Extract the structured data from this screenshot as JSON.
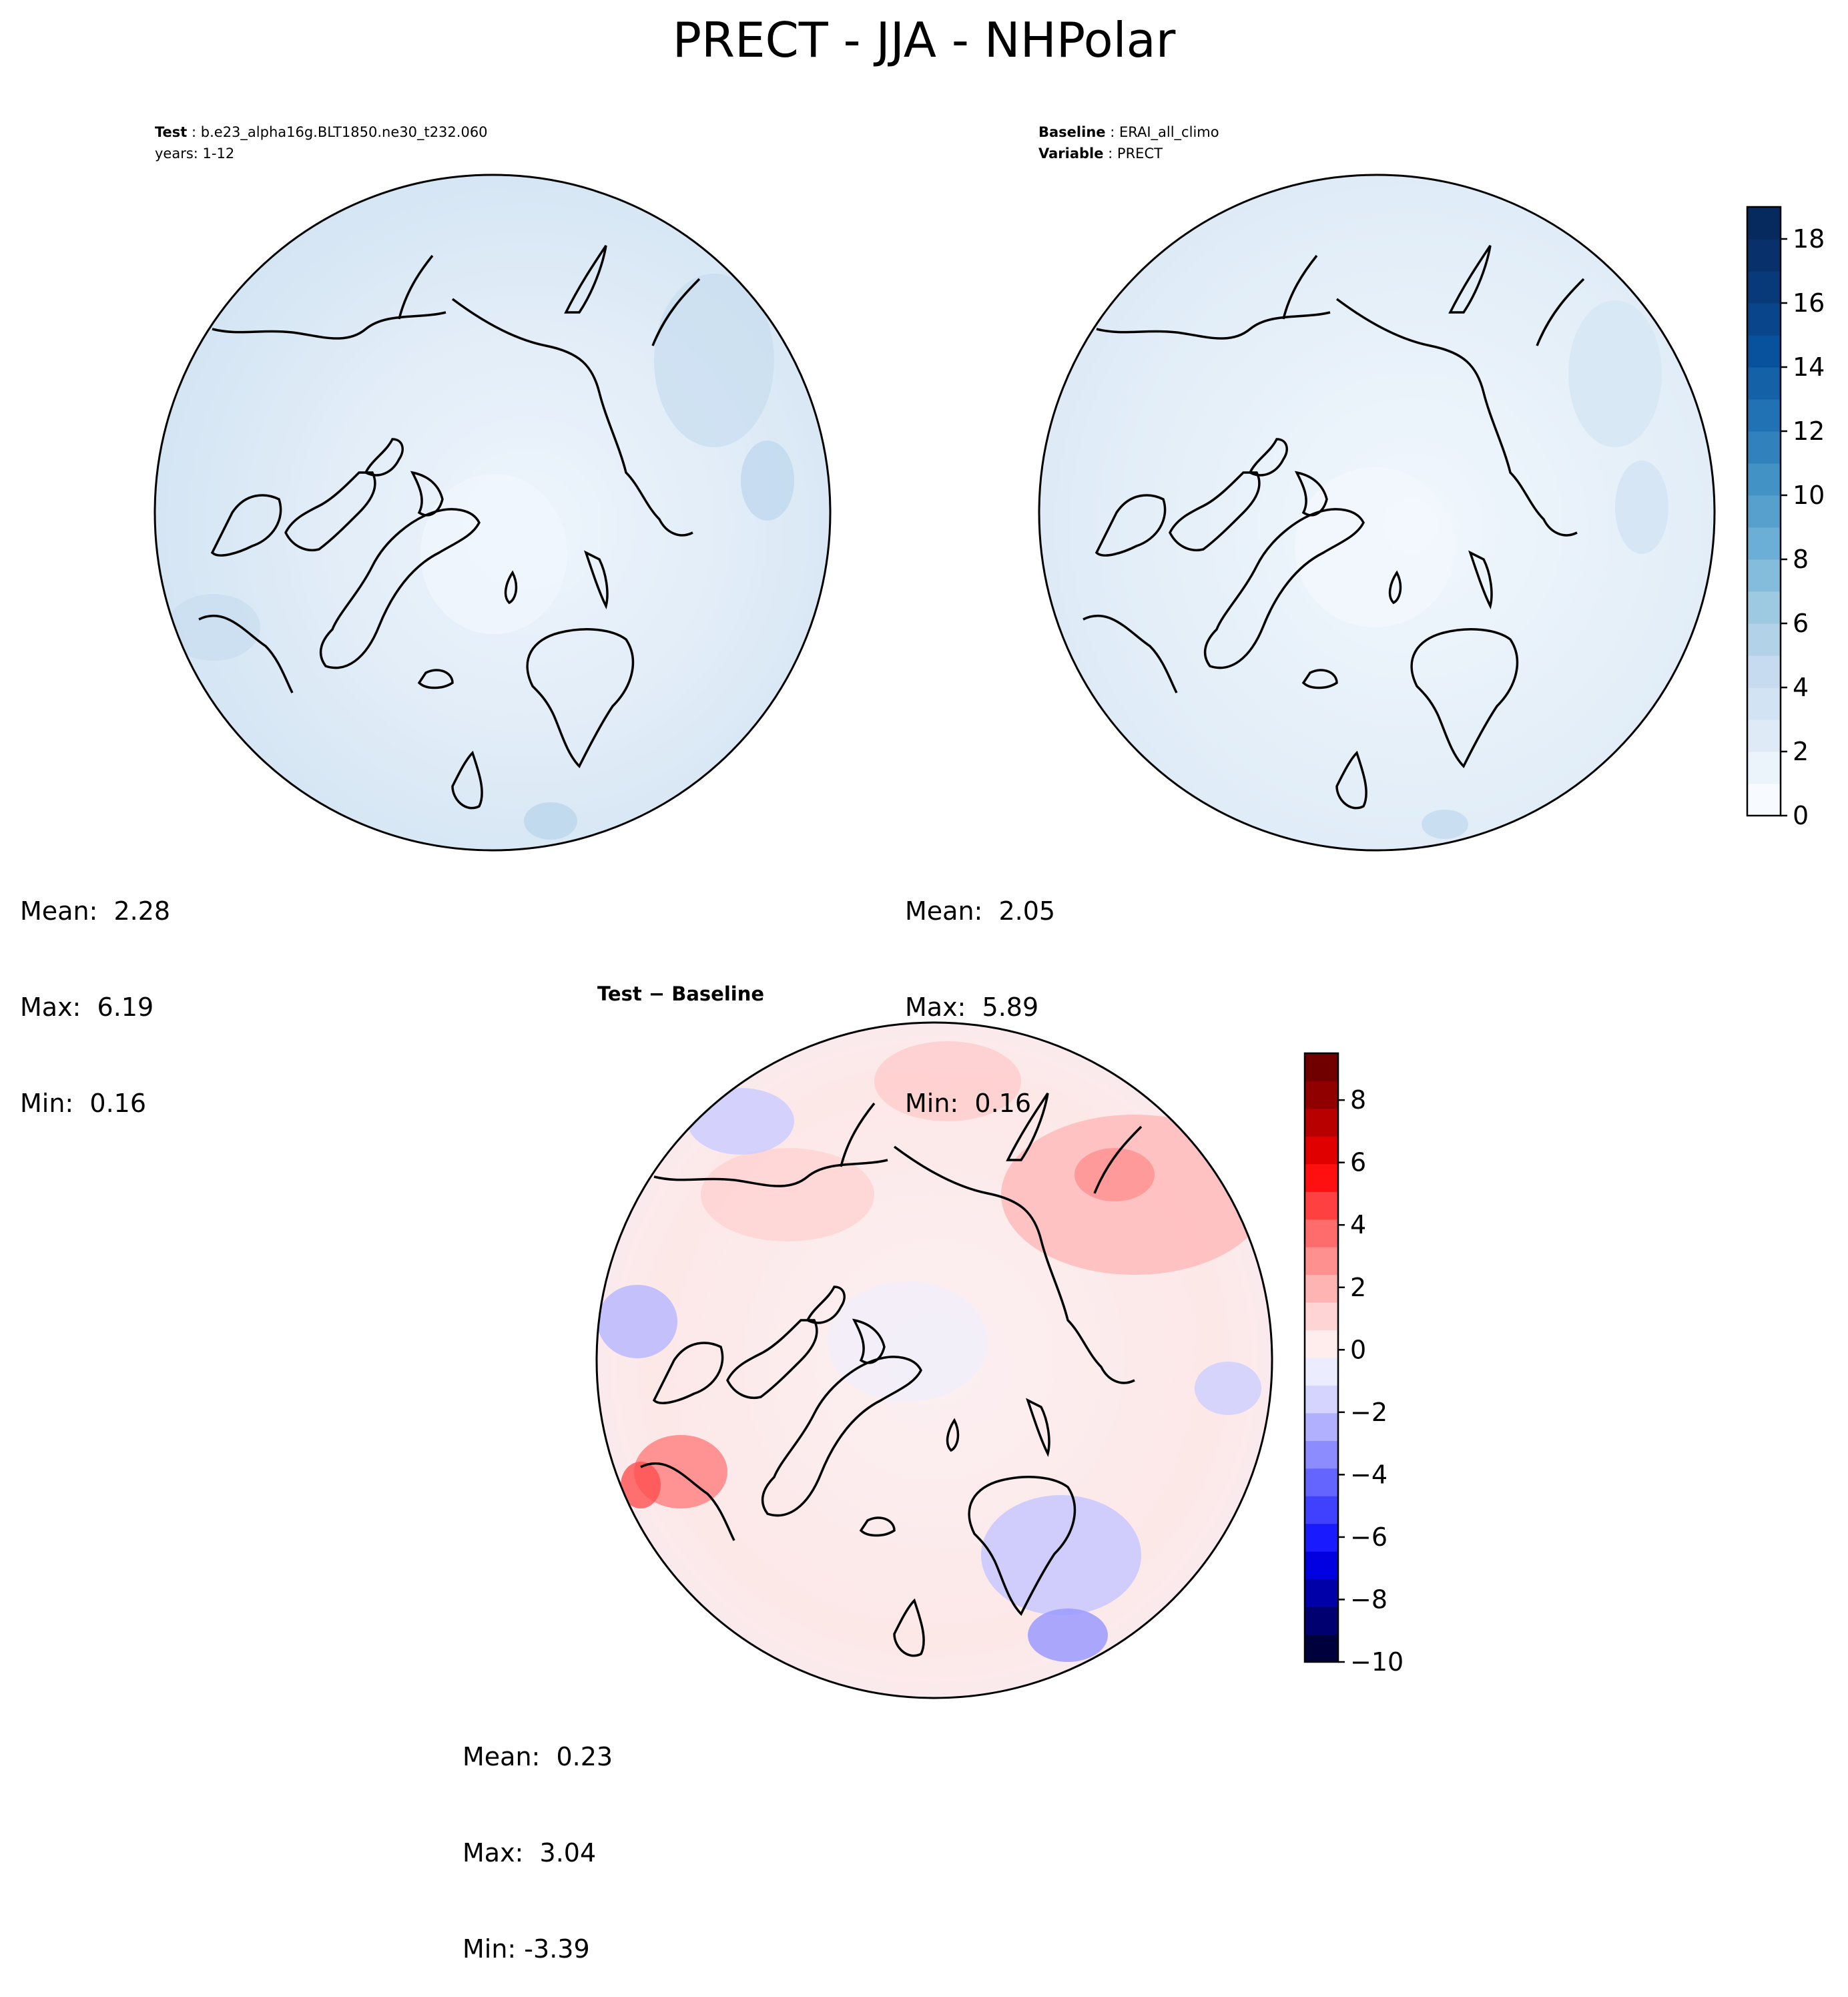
{
  "title": "PRECT - JJA - NHPolar",
  "test_panel": {
    "label_key": "Test",
    "label_value": "b.e23_alpha16g.BLT1850.ne30_t232.060",
    "years": "years: 1-12",
    "stats": {
      "mean": "Mean:  2.28",
      "max": "Max:  6.19",
      "min": "Min:  0.16"
    }
  },
  "baseline_panel": {
    "baseline_key": "Baseline",
    "baseline_value": "ERAI_all_climo",
    "variable_key": "Variable",
    "variable_value": "PRECT",
    "stats": {
      "mean": "Mean:  2.05",
      "max": "Max:  5.89",
      "min": "Min:  0.16"
    }
  },
  "diff_panel": {
    "title": "Test − Baseline",
    "stats": {
      "mean": "Mean:  0.23",
      "max": "Max:  3.04",
      "min": "Min: -3.39"
    }
  },
  "colorbar_abs": {
    "range": [
      0,
      19
    ],
    "ticks": [
      "0",
      "2",
      "4",
      "6",
      "8",
      "10",
      "12",
      "14",
      "16",
      "18"
    ],
    "colors": [
      "#f7fbff",
      "#ebf3fb",
      "#deebf7",
      "#d2e3f3",
      "#c6dbef",
      "#b2d2e8",
      "#9ecae1",
      "#84bcdb",
      "#6baed6",
      "#57a0ce",
      "#4292c6",
      "#3181bd",
      "#2171b5",
      "#1461a8",
      "#08519c",
      "#08458a",
      "#083a7a",
      "#08306b",
      "#062a5e"
    ]
  },
  "colorbar_diff": {
    "range": [
      -10,
      9.5
    ],
    "ticks": [
      "−10",
      "−8",
      "−6",
      "−4",
      "−2",
      "0",
      "2",
      "4",
      "6",
      "8"
    ],
    "colors": [
      "#00003c",
      "#000070",
      "#0000a8",
      "#0000e0",
      "#1a1aff",
      "#4040ff",
      "#6464ff",
      "#8c8cff",
      "#b0b0ff",
      "#d4d4ff",
      "#ececff",
      "#ffecec",
      "#ffd4d4",
      "#ffb4b4",
      "#ff9090",
      "#ff6c6c",
      "#ff4040",
      "#ff1010",
      "#e00000",
      "#b80000",
      "#900000",
      "#700000"
    ]
  }
}
